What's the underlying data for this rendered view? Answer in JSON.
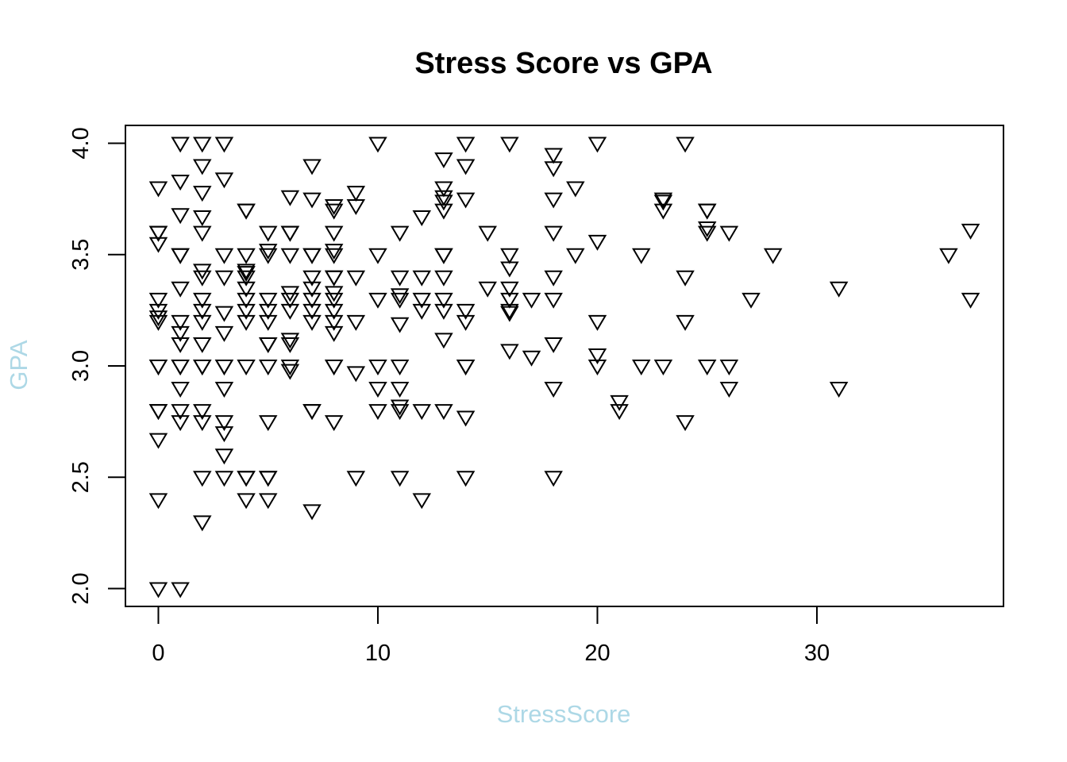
{
  "chart_data": {
    "type": "scatter",
    "title": "Stress Score vs GPA",
    "xlabel": "StressScore",
    "ylabel": "GPA",
    "xlim": [
      -1.5,
      38.5
    ],
    "ylim": [
      1.92,
      4.08
    ],
    "xticks": [
      0,
      10,
      20,
      30
    ],
    "yticks": [
      2.0,
      2.5,
      3.0,
      3.5,
      4.0
    ],
    "axis_label_color": "#ADD8E6",
    "marker": "down-triangle",
    "grid": false,
    "points": [
      [
        0,
        3.8
      ],
      [
        0,
        3.6
      ],
      [
        0,
        3.6
      ],
      [
        0,
        3.55
      ],
      [
        0,
        3.3
      ],
      [
        0,
        3.25
      ],
      [
        0,
        3.22
      ],
      [
        0,
        3.2
      ],
      [
        0,
        3.0
      ],
      [
        0,
        3.0
      ],
      [
        0,
        2.8
      ],
      [
        0,
        2.8
      ],
      [
        0,
        2.67
      ],
      [
        0,
        2.4
      ],
      [
        0,
        2.0
      ],
      [
        1,
        4.0
      ],
      [
        1,
        3.83
      ],
      [
        1,
        3.68
      ],
      [
        1,
        3.5
      ],
      [
        1,
        3.5
      ],
      [
        1,
        3.35
      ],
      [
        1,
        3.2
      ],
      [
        1,
        3.15
      ],
      [
        1,
        3.1
      ],
      [
        1,
        3.0
      ],
      [
        1,
        3.0
      ],
      [
        1,
        2.9
      ],
      [
        1,
        2.8
      ],
      [
        1,
        2.75
      ],
      [
        1,
        2.0
      ],
      [
        2,
        4.0
      ],
      [
        2,
        3.9
      ],
      [
        2,
        3.78
      ],
      [
        2,
        3.67
      ],
      [
        2,
        3.6
      ],
      [
        2,
        3.43
      ],
      [
        2,
        3.4
      ],
      [
        2,
        3.3
      ],
      [
        2,
        3.25
      ],
      [
        2,
        3.2
      ],
      [
        2,
        3.1
      ],
      [
        2,
        3.0
      ],
      [
        2,
        3.0
      ],
      [
        2,
        2.8
      ],
      [
        2,
        2.75
      ],
      [
        2,
        2.5
      ],
      [
        2,
        2.3
      ],
      [
        3,
        4.0
      ],
      [
        3,
        3.84
      ],
      [
        3,
        3.5
      ],
      [
        3,
        3.4
      ],
      [
        3,
        3.24
      ],
      [
        3,
        3.15
      ],
      [
        3,
        3.0
      ],
      [
        3,
        3.0
      ],
      [
        3,
        2.9
      ],
      [
        3,
        2.75
      ],
      [
        3,
        2.7
      ],
      [
        3,
        2.6
      ],
      [
        3,
        2.5
      ],
      [
        4,
        3.7
      ],
      [
        4,
        3.7
      ],
      [
        4,
        3.5
      ],
      [
        4,
        3.43
      ],
      [
        4,
        3.42
      ],
      [
        4,
        3.4
      ],
      [
        4,
        3.35
      ],
      [
        4,
        3.3
      ],
      [
        4,
        3.25
      ],
      [
        4,
        3.2
      ],
      [
        4,
        3.0
      ],
      [
        4,
        2.5
      ],
      [
        4,
        2.5
      ],
      [
        4,
        2.4
      ],
      [
        5,
        3.6
      ],
      [
        5,
        3.52
      ],
      [
        5,
        3.5
      ],
      [
        5,
        3.3
      ],
      [
        5,
        3.25
      ],
      [
        5,
        3.2
      ],
      [
        5,
        3.1
      ],
      [
        5,
        3.1
      ],
      [
        5,
        3.0
      ],
      [
        5,
        2.75
      ],
      [
        5,
        2.5
      ],
      [
        5,
        2.5
      ],
      [
        5,
        2.4
      ],
      [
        6,
        3.76
      ],
      [
        6,
        3.6
      ],
      [
        6,
        3.6
      ],
      [
        6,
        3.5
      ],
      [
        6,
        3.33
      ],
      [
        6,
        3.3
      ],
      [
        6,
        3.25
      ],
      [
        6,
        3.12
      ],
      [
        6,
        3.1
      ],
      [
        6,
        3.0
      ],
      [
        6,
        2.98
      ],
      [
        7,
        3.9
      ],
      [
        7,
        3.75
      ],
      [
        7,
        3.5
      ],
      [
        7,
        3.5
      ],
      [
        7,
        3.4
      ],
      [
        7,
        3.35
      ],
      [
        7,
        3.3
      ],
      [
        7,
        3.25
      ],
      [
        7,
        3.2
      ],
      [
        7,
        2.8
      ],
      [
        7,
        2.8
      ],
      [
        7,
        2.35
      ],
      [
        8,
        3.72
      ],
      [
        8,
        3.7
      ],
      [
        8,
        3.6
      ],
      [
        8,
        3.52
      ],
      [
        8,
        3.5
      ],
      [
        8,
        3.4
      ],
      [
        8,
        3.4
      ],
      [
        8,
        3.33
      ],
      [
        8,
        3.3
      ],
      [
        8,
        3.25
      ],
      [
        8,
        3.2
      ],
      [
        8,
        3.15
      ],
      [
        8,
        3.0
      ],
      [
        8,
        3.0
      ],
      [
        8,
        2.75
      ],
      [
        9,
        3.78
      ],
      [
        9,
        3.72
      ],
      [
        9,
        3.4
      ],
      [
        9,
        3.2
      ],
      [
        9,
        2.97
      ],
      [
        9,
        2.5
      ],
      [
        10,
        4.0
      ],
      [
        10,
        3.5
      ],
      [
        10,
        3.3
      ],
      [
        10,
        3.0
      ],
      [
        10,
        2.9
      ],
      [
        10,
        2.8
      ],
      [
        11,
        3.6
      ],
      [
        11,
        3.4
      ],
      [
        11,
        3.32
      ],
      [
        11,
        3.3
      ],
      [
        11,
        3.19
      ],
      [
        11,
        3.0
      ],
      [
        11,
        2.9
      ],
      [
        11,
        2.82
      ],
      [
        11,
        2.8
      ],
      [
        11,
        2.5
      ],
      [
        12,
        3.67
      ],
      [
        12,
        3.4
      ],
      [
        12,
        3.3
      ],
      [
        12,
        3.25
      ],
      [
        12,
        2.8
      ],
      [
        12,
        2.4
      ],
      [
        13,
        3.93
      ],
      [
        13,
        3.8
      ],
      [
        13,
        3.76
      ],
      [
        13,
        3.74
      ],
      [
        13,
        3.7
      ],
      [
        13,
        3.5
      ],
      [
        13,
        3.5
      ],
      [
        13,
        3.4
      ],
      [
        13,
        3.3
      ],
      [
        13,
        3.25
      ],
      [
        13,
        3.12
      ],
      [
        13,
        2.8
      ],
      [
        14,
        4.0
      ],
      [
        14,
        3.9
      ],
      [
        14,
        3.75
      ],
      [
        14,
        3.25
      ],
      [
        14,
        3.2
      ],
      [
        14,
        3.0
      ],
      [
        14,
        3.0
      ],
      [
        14,
        2.77
      ],
      [
        14,
        2.5
      ],
      [
        15,
        3.6
      ],
      [
        15,
        3.35
      ],
      [
        16,
        4.0
      ],
      [
        16,
        3.5
      ],
      [
        16,
        3.44
      ],
      [
        16,
        3.35
      ],
      [
        16,
        3.3
      ],
      [
        16,
        3.25
      ],
      [
        16,
        3.24
      ],
      [
        16,
        3.07
      ],
      [
        17,
        3.3
      ],
      [
        17,
        3.04
      ],
      [
        18,
        3.95
      ],
      [
        18,
        3.89
      ],
      [
        18,
        3.75
      ],
      [
        18,
        3.6
      ],
      [
        18,
        3.4
      ],
      [
        18,
        3.3
      ],
      [
        18,
        3.1
      ],
      [
        18,
        2.9
      ],
      [
        18,
        2.5
      ],
      [
        19,
        3.8
      ],
      [
        19,
        3.5
      ],
      [
        20,
        4.0
      ],
      [
        20,
        3.56
      ],
      [
        20,
        3.2
      ],
      [
        20,
        3.05
      ],
      [
        20,
        3.0
      ],
      [
        21,
        2.84
      ],
      [
        21,
        2.8
      ],
      [
        22,
        3.5
      ],
      [
        22,
        3.0
      ],
      [
        23,
        3.75
      ],
      [
        23,
        3.74
      ],
      [
        23,
        3.7
      ],
      [
        23,
        3.0
      ],
      [
        24,
        4.0
      ],
      [
        24,
        3.4
      ],
      [
        24,
        3.2
      ],
      [
        24,
        2.75
      ],
      [
        25,
        3.7
      ],
      [
        25,
        3.7
      ],
      [
        25,
        3.62
      ],
      [
        25,
        3.6
      ],
      [
        25,
        3.0
      ],
      [
        26,
        3.6
      ],
      [
        26,
        3.0
      ],
      [
        26,
        2.9
      ],
      [
        27,
        3.3
      ],
      [
        28,
        3.5
      ],
      [
        31,
        3.35
      ],
      [
        31,
        2.9
      ],
      [
        36,
        3.5
      ],
      [
        37,
        3.61
      ],
      [
        37,
        3.3
      ]
    ]
  }
}
